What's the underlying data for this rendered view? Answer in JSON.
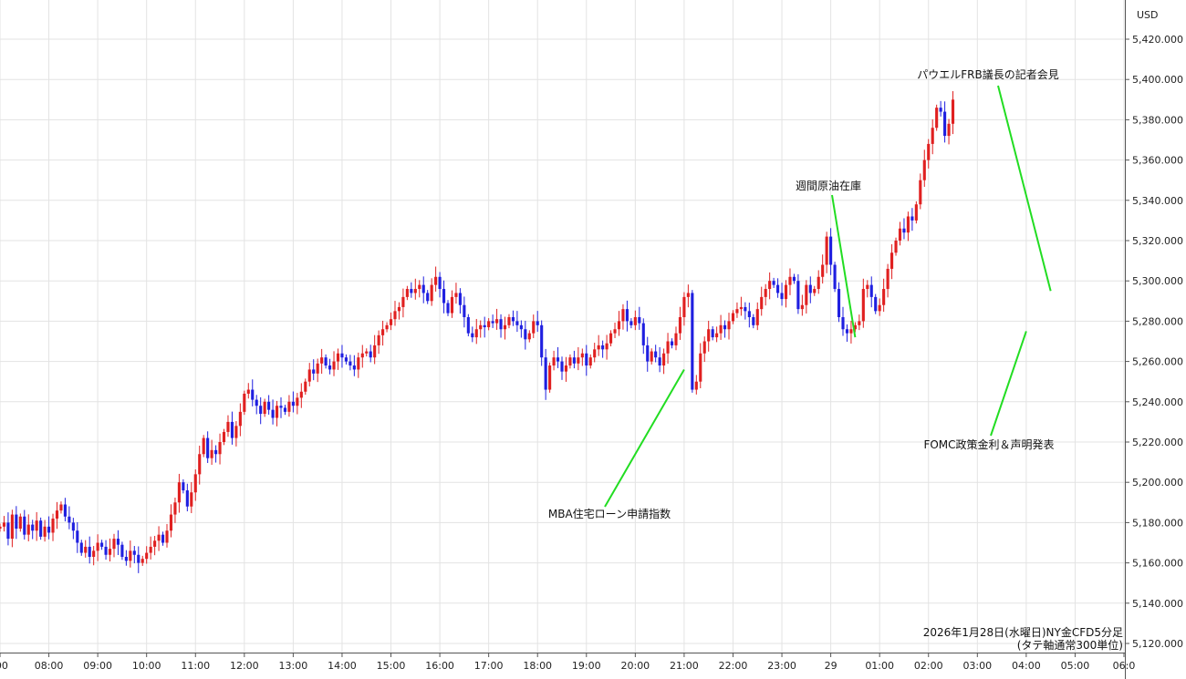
{
  "chart_data": {
    "type": "candlestick",
    "currency": "USD",
    "caption_line1": "2026年1月28日(水曜日)NY金CFD5分足",
    "caption_line2": "(タテ軸通常300単位)",
    "ylim": [
      5110,
      5430
    ],
    "y_ticks": [
      "5,120.000",
      "5,140.000",
      "5,160.000",
      "5,180.000",
      "5,200.000",
      "5,220.000",
      "5,240.000",
      "5,260.000",
      "5,280.000",
      "5,300.000",
      "5,320.000",
      "5,340.000",
      "5,360.000",
      "5,380.000",
      "5,400.000",
      "5,420.000"
    ],
    "y_tick_values": [
      5120,
      5140,
      5160,
      5180,
      5200,
      5220,
      5240,
      5260,
      5280,
      5300,
      5320,
      5340,
      5360,
      5380,
      5400,
      5420
    ],
    "x_ticks": [
      ":00",
      "08:00",
      "09:00",
      "10:00",
      "11:00",
      "12:00",
      "13:00",
      "14:00",
      "15:00",
      "16:00",
      "17:00",
      "18:00",
      "19:00",
      "20:00",
      "21:00",
      "22:00",
      "23:00",
      "29",
      "01:00",
      "02:00",
      "03:00",
      "04:00",
      "05:00",
      "06:0"
    ],
    "x_tick_hours": [
      7,
      8,
      9,
      10,
      11,
      12,
      13,
      14,
      15,
      16,
      17,
      18,
      19,
      20,
      21,
      22,
      23,
      24,
      25,
      26,
      27,
      28,
      29,
      30
    ],
    "grid": true,
    "up_color": "#e02020",
    "down_color": "#1f1fe0",
    "annotation_line_color": "#22dd22",
    "annotations": [
      {
        "text": "MBA住宅ローン申請指数",
        "time_h": 21.0,
        "price": 5256
      },
      {
        "text": "週間原油在庫",
        "time_h": 24.5,
        "price": 5272
      },
      {
        "text": "FOMC政策金利＆声明発表",
        "time_h": 28.0,
        "price": 5275
      },
      {
        "text": "パウエルFRB議長の記者会見",
        "time_h": 28.5,
        "price": 5295
      }
    ],
    "series": [
      {
        "time_h": 7.0,
        "values": [
          5178,
          5180,
          5172,
          5184,
          5177,
          5183,
          5174,
          5179,
          5176,
          5181,
          5173,
          5178,
          5175,
          5182,
          5186,
          5189,
          5183,
          5180,
          5176,
          5170,
          5165,
          5168,
          5163,
          5166,
          5170,
          5168,
          5164,
          5167,
          5172,
          5169,
          5163,
          5161,
          5166,
          5164,
          5160,
          5162,
          5165,
          5168,
          5171,
          5174,
          5170,
          5176,
          5184,
          5190,
          5200,
          5196,
          5188,
          5195,
          5204,
          5214,
          5222,
          5212,
          5216,
          5214,
          5220,
          5225,
          5230,
          5222,
          5228,
          5235,
          5244,
          5246,
          5241,
          5238,
          5234,
          5240,
          5236,
          5232,
          5238,
          5237,
          5235,
          5240,
          5238,
          5242,
          5245,
          5250,
          5256,
          5254,
          5259,
          5262,
          5258,
          5256,
          5260,
          5264,
          5262,
          5260,
          5258,
          5256,
          5262,
          5264,
          5265,
          5262,
          5268,
          5273,
          5276,
          5278,
          5281,
          5285,
          5287,
          5292,
          5296,
          5294,
          5296,
          5298,
          5294,
          5290,
          5298,
          5302,
          5296,
          5289,
          5284,
          5292,
          5294,
          5288,
          5282,
          5274,
          5272,
          5276,
          5278,
          5277,
          5280,
          5279,
          5281,
          5276,
          5278,
          5282,
          5280,
          5278,
          5276,
          5271,
          5274,
          5280,
          5278,
          5262,
          5246,
          5258,
          5262,
          5260,
          5255,
          5258,
          5262,
          5259,
          5262,
          5264,
          5258,
          5262,
          5266,
          5268,
          5266,
          5269,
          5274,
          5276,
          5280,
          5286,
          5280,
          5278,
          5282,
          5279,
          5268,
          5260,
          5265,
          5262,
          5258,
          5264,
          5270,
          5268,
          5274,
          5282,
          5292,
          5294,
          5246,
          5250,
          5264,
          5270,
          5276,
          5272,
          5274,
          5278,
          5276,
          5280,
          5284,
          5286,
          5287,
          5285,
          5282,
          5278,
          5286,
          5292,
          5296,
          5300,
          5298,
          5294,
          5291,
          5298,
          5302,
          5300,
          5286,
          5288,
          5298,
          5294,
          5296,
          5302,
          5308,
          5322,
          5308,
          5296,
          5282,
          5276,
          5274,
          5276,
          5278,
          5280,
          5296,
          5298,
          5292,
          5285,
          5288,
          5296,
          5306,
          5314,
          5320,
          5326,
          5324,
          5332,
          5330,
          5338,
          5350,
          5360,
          5368,
          5376,
          5386,
          5384,
          5372,
          5378,
          5390
        ]
      }
    ]
  }
}
